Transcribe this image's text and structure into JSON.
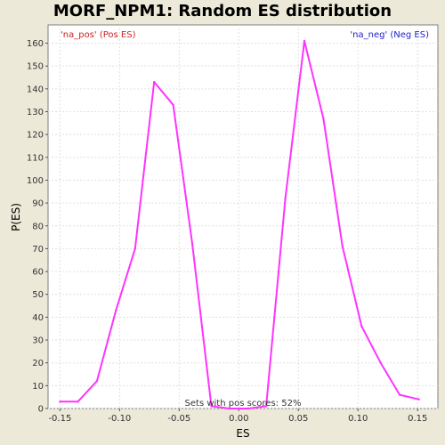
{
  "chart_data": {
    "type": "line",
    "title": "MORF_NPM1: Random ES distribution",
    "xlabel": "ES",
    "ylabel": "P(ES)",
    "xlim": [
      -0.16,
      0.167
    ],
    "ylim": [
      0,
      168
    ],
    "x_ticks": [
      "-0.15",
      "-0.10",
      "-0.05",
      "0.00",
      "0.05",
      "0.10",
      "0.15"
    ],
    "x_tick_values": [
      -0.15,
      -0.1,
      -0.05,
      0.0,
      0.05,
      0.1,
      0.15
    ],
    "y_ticks": [
      "0",
      "10",
      "20",
      "30",
      "40",
      "50",
      "60",
      "70",
      "80",
      "90",
      "100",
      "110",
      "120",
      "130",
      "140",
      "150",
      "160"
    ],
    "y_tick_values": [
      0,
      10,
      20,
      30,
      40,
      50,
      60,
      70,
      80,
      90,
      100,
      110,
      120,
      130,
      140,
      150,
      160
    ],
    "grid": true,
    "legend_pos": "na_pos' (Pos ES)",
    "legend_neg": "'na_neg' (Neg ES)",
    "legend_pos_label": "'na_pos' (Pos ES)",
    "legend_pos_color": "#CC2222",
    "legend_neg_color": "#2222CC",
    "annotation": "Sets with pos scores: 52%",
    "series": [
      {
        "color": "#FF33FF",
        "x": [
          -0.15,
          -0.135,
          -0.119,
          -0.103,
          -0.087,
          -0.071,
          -0.055,
          -0.039,
          -0.023,
          -0.008,
          0.008,
          0.023,
          0.039,
          0.055,
          0.071,
          0.087,
          0.103,
          0.119,
          0.135,
          0.151
        ],
        "y": [
          3,
          3,
          12,
          43,
          70,
          143,
          133,
          72,
          1,
          0,
          0,
          1,
          92,
          161,
          127,
          71,
          36,
          20,
          6,
          4
        ]
      }
    ]
  }
}
